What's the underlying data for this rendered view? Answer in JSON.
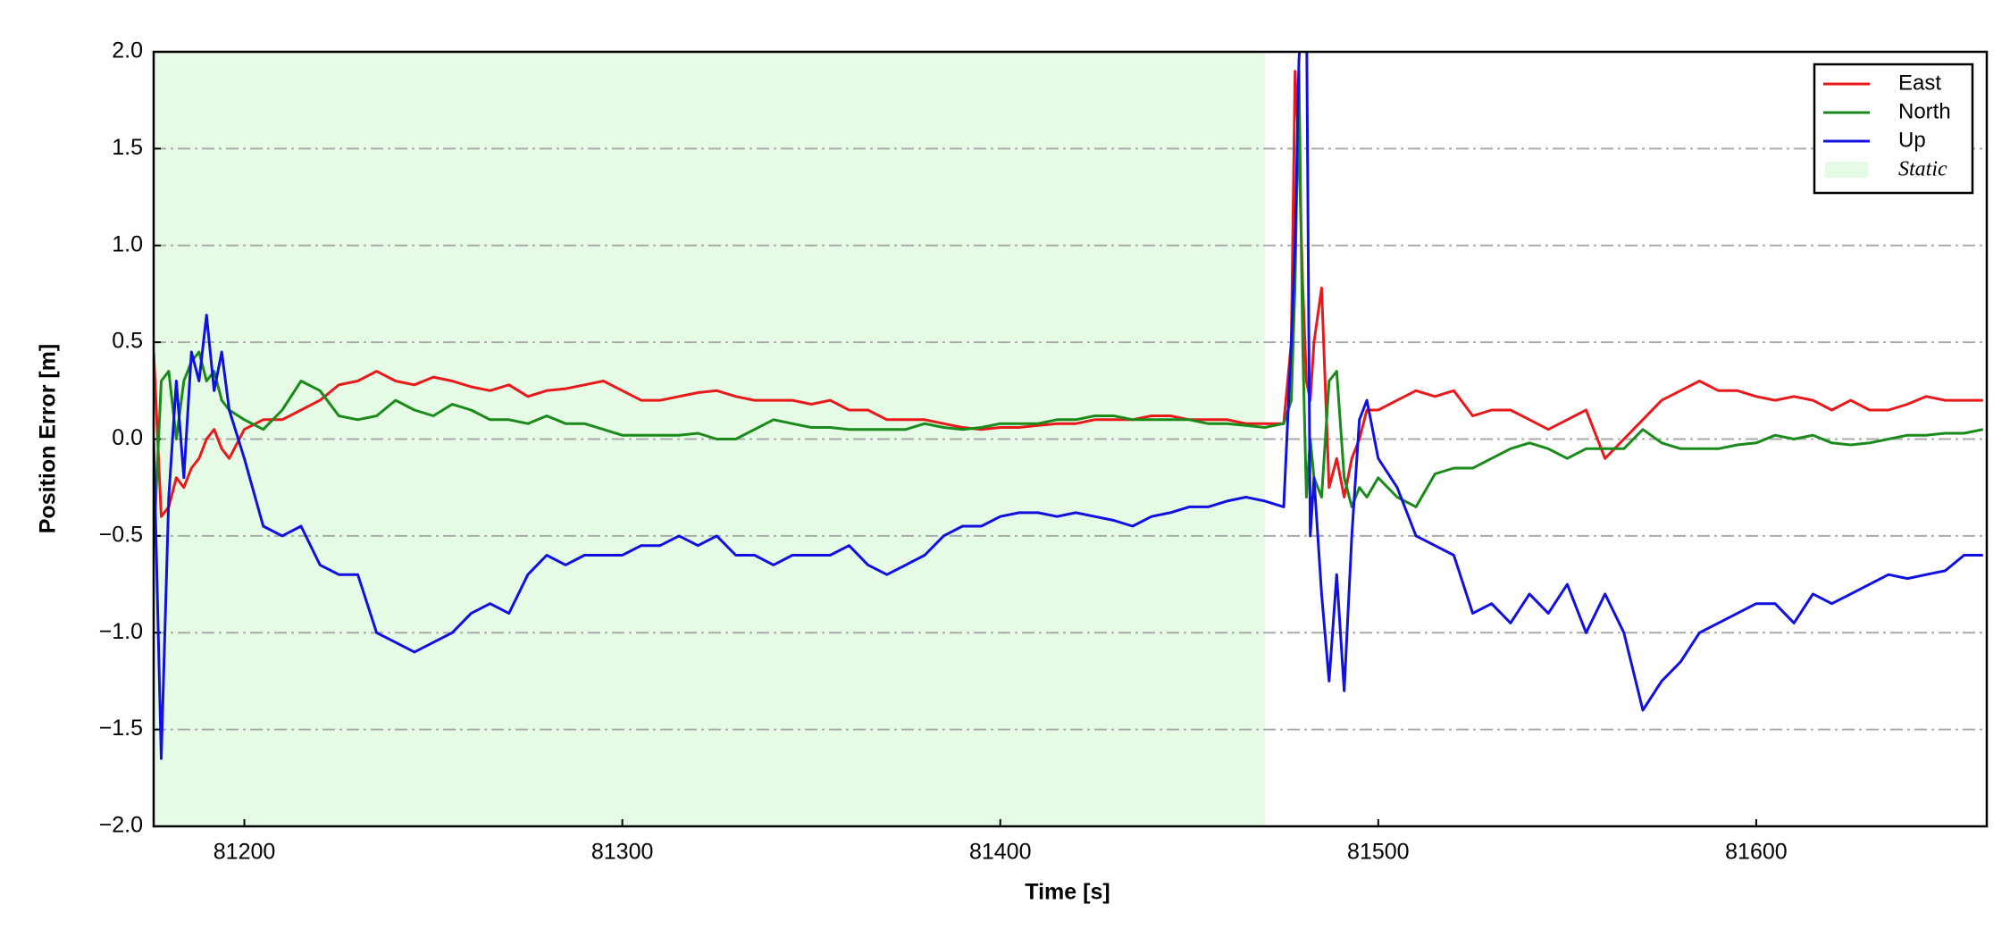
{
  "chart_data": {
    "type": "line",
    "xlabel": "Time [s]",
    "ylabel": "Position Error [m]",
    "xlim": [
      81176,
      81661
    ],
    "ylim": [
      -2.0,
      2.0
    ],
    "xticks": [
      81200,
      81300,
      81400,
      81500,
      81600
    ],
    "yticks": [
      {
        "value": -2.0,
        "label": "−2.0"
      },
      {
        "value": -1.5,
        "label": "−1.5"
      },
      {
        "value": -1.0,
        "label": "−1.0"
      },
      {
        "value": -0.5,
        "label": "−0.5"
      },
      {
        "value": 0,
        "label": "0.0"
      },
      {
        "value": 0.5,
        "label": "0.5"
      },
      {
        "value": 1.0,
        "label": "1.0"
      },
      {
        "value": 1.5,
        "label": "1.5"
      },
      {
        "value": 2.0,
        "label": "2.0"
      }
    ],
    "grid": true,
    "legend": "upper right",
    "shaded": {
      "name": "Static",
      "color": "#e6fbe6",
      "x": [
        81176,
        81470
      ]
    },
    "x": [
      81176,
      81178,
      81180,
      81182,
      81184,
      81186,
      81188,
      81190,
      81192,
      81194,
      81196,
      81200,
      81205,
      81210,
      81215,
      81220,
      81225,
      81230,
      81235,
      81240,
      81245,
      81250,
      81255,
      81260,
      81265,
      81270,
      81275,
      81280,
      81285,
      81290,
      81295,
      81300,
      81305,
      81310,
      81315,
      81320,
      81325,
      81330,
      81335,
      81340,
      81345,
      81350,
      81355,
      81360,
      81365,
      81370,
      81375,
      81380,
      81385,
      81390,
      81395,
      81400,
      81405,
      81410,
      81415,
      81420,
      81425,
      81430,
      81435,
      81440,
      81445,
      81450,
      81455,
      81460,
      81465,
      81470,
      81475,
      81477,
      81478,
      81479,
      81480,
      81481,
      81482,
      81483,
      81485,
      81487,
      81489,
      81491,
      81493,
      81495,
      81497,
      81500,
      81505,
      81510,
      81515,
      81520,
      81525,
      81530,
      81535,
      81540,
      81545,
      81550,
      81555,
      81560,
      81565,
      81570,
      81575,
      81580,
      81585,
      81590,
      81595,
      81600,
      81605,
      81610,
      81615,
      81620,
      81625,
      81630,
      81635,
      81640,
      81645,
      81650,
      81655,
      81660
    ],
    "series": [
      {
        "name": "East",
        "color": "#e8191b",
        "values": [
          0.45,
          -0.4,
          -0.35,
          -0.2,
          -0.25,
          -0.15,
          -0.1,
          0.0,
          0.05,
          -0.05,
          -0.1,
          0.05,
          0.1,
          0.1,
          0.15,
          0.2,
          0.28,
          0.3,
          0.35,
          0.3,
          0.28,
          0.32,
          0.3,
          0.27,
          0.25,
          0.28,
          0.22,
          0.25,
          0.26,
          0.28,
          0.3,
          0.25,
          0.2,
          0.2,
          0.22,
          0.24,
          0.25,
          0.22,
          0.2,
          0.2,
          0.2,
          0.18,
          0.2,
          0.15,
          0.15,
          0.1,
          0.1,
          0.1,
          0.08,
          0.06,
          0.05,
          0.06,
          0.06,
          0.07,
          0.08,
          0.08,
          0.1,
          0.1,
          0.1,
          0.12,
          0.12,
          0.1,
          0.1,
          0.1,
          0.08,
          0.08,
          0.08,
          0.5,
          1.9,
          1.5,
          0.8,
          0.3,
          0.2,
          0.5,
          0.78,
          -0.25,
          -0.1,
          -0.3,
          -0.1,
          0.0,
          0.15,
          0.15,
          0.2,
          0.25,
          0.22,
          0.25,
          0.12,
          0.15,
          0.15,
          0.1,
          0.05,
          0.1,
          0.15,
          -0.1,
          0.0,
          0.1,
          0.2,
          0.25,
          0.3,
          0.25,
          0.25,
          0.22,
          0.2,
          0.22,
          0.2,
          0.15,
          0.2,
          0.15,
          0.15,
          0.18,
          0.22,
          0.2,
          0.2,
          0.2
        ]
      },
      {
        "name": "North",
        "color": "#1a8a1a",
        "values": [
          -0.55,
          0.3,
          0.35,
          0.0,
          0.3,
          0.4,
          0.45,
          0.3,
          0.35,
          0.2,
          0.15,
          0.1,
          0.05,
          0.15,
          0.3,
          0.25,
          0.12,
          0.1,
          0.12,
          0.2,
          0.15,
          0.12,
          0.18,
          0.15,
          0.1,
          0.1,
          0.08,
          0.12,
          0.08,
          0.08,
          0.05,
          0.02,
          0.02,
          0.02,
          0.02,
          0.03,
          0.0,
          0.0,
          0.05,
          0.1,
          0.08,
          0.06,
          0.06,
          0.05,
          0.05,
          0.05,
          0.05,
          0.08,
          0.06,
          0.05,
          0.06,
          0.08,
          0.08,
          0.08,
          0.1,
          0.1,
          0.12,
          0.12,
          0.1,
          0.1,
          0.1,
          0.1,
          0.08,
          0.08,
          0.07,
          0.06,
          0.08,
          0.2,
          0.8,
          1.9,
          0.5,
          -0.3,
          0.0,
          -0.2,
          -0.3,
          0.3,
          0.35,
          -0.2,
          -0.35,
          -0.25,
          -0.3,
          -0.2,
          -0.3,
          -0.35,
          -0.18,
          -0.15,
          -0.15,
          -0.1,
          -0.05,
          -0.02,
          -0.05,
          -0.1,
          -0.05,
          -0.05,
          -0.05,
          0.05,
          -0.02,
          -0.05,
          -0.05,
          -0.05,
          -0.03,
          -0.02,
          0.02,
          0.0,
          0.02,
          -0.02,
          -0.03,
          -0.02,
          0.0,
          0.02,
          0.02,
          0.03,
          0.03,
          0.05
        ]
      },
      {
        "name": "Up",
        "color": "#1010e0",
        "values": [
          0.0,
          -1.65,
          -0.3,
          0.3,
          -0.2,
          0.45,
          0.3,
          0.64,
          0.25,
          0.45,
          0.15,
          -0.1,
          -0.45,
          -0.5,
          -0.45,
          -0.65,
          -0.7,
          -0.7,
          -1.0,
          -1.05,
          -1.1,
          -1.05,
          -1.0,
          -0.9,
          -0.85,
          -0.9,
          -0.7,
          -0.6,
          -0.65,
          -0.6,
          -0.6,
          -0.6,
          -0.55,
          -0.55,
          -0.5,
          -0.55,
          -0.5,
          -0.6,
          -0.6,
          -0.65,
          -0.6,
          -0.6,
          -0.6,
          -0.55,
          -0.65,
          -0.7,
          -0.65,
          -0.6,
          -0.5,
          -0.45,
          -0.45,
          -0.4,
          -0.38,
          -0.38,
          -0.4,
          -0.38,
          -0.4,
          -0.42,
          -0.45,
          -0.4,
          -0.38,
          -0.35,
          -0.35,
          -0.32,
          -0.3,
          -0.32,
          -0.35,
          0.5,
          1.0,
          1.95,
          2.3,
          2.3,
          -0.5,
          -0.2,
          -0.8,
          -1.25,
          -0.7,
          -1.3,
          -0.5,
          0.1,
          0.2,
          -0.1,
          -0.25,
          -0.5,
          -0.55,
          -0.6,
          -0.9,
          -0.85,
          -0.95,
          -0.8,
          -0.9,
          -0.75,
          -1.0,
          -0.8,
          -1.0,
          -1.4,
          -1.25,
          -1.15,
          -1.0,
          -0.95,
          -0.9,
          -0.85,
          -0.85,
          -0.95,
          -0.8,
          -0.85,
          -0.8,
          -0.75,
          -0.7,
          -0.72,
          -0.7,
          -0.68,
          -0.6,
          -0.6
        ]
      }
    ]
  }
}
